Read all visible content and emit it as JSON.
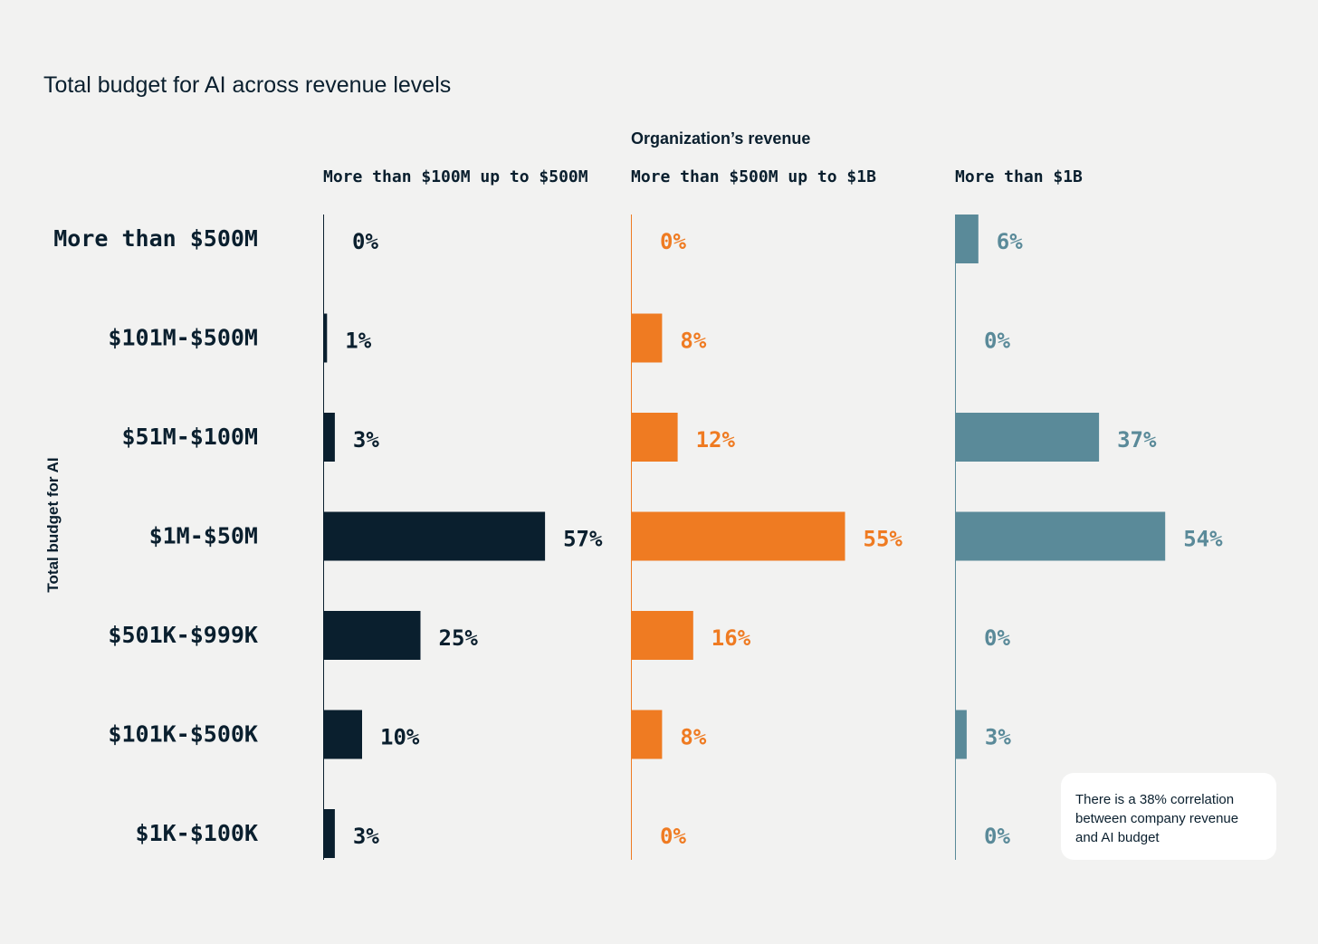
{
  "chart_data": {
    "type": "bar",
    "orientation": "horizontal",
    "title": "Total budget for AI across revenue levels",
    "panel_group_label": "Organization’s revenue",
    "ylabel": "Total budget for AI",
    "categories": [
      "More than $500M",
      "$101M-$500M",
      "$51M-$100M",
      "$1M-$50M",
      "$501K-$999K",
      "$101K-$500K",
      "$1K-$100K"
    ],
    "series": [
      {
        "name": "More than $100M up to $500M",
        "color": "#0a1f2e",
        "values": [
          0,
          1,
          3,
          57,
          25,
          10,
          3
        ]
      },
      {
        "name": "More than $500M up to $1B",
        "color": "#ef7b22",
        "values": [
          0,
          8,
          12,
          55,
          16,
          8,
          0
        ]
      },
      {
        "name": "More than $1B",
        "color": "#5a8a99",
        "values": [
          6,
          0,
          37,
          54,
          0,
          3,
          0
        ]
      }
    ],
    "value_suffix": "%",
    "grid": false
  },
  "annotation": {
    "lines": [
      "There is a 38% correlation",
      "between company revenue",
      "and AI budget"
    ]
  }
}
